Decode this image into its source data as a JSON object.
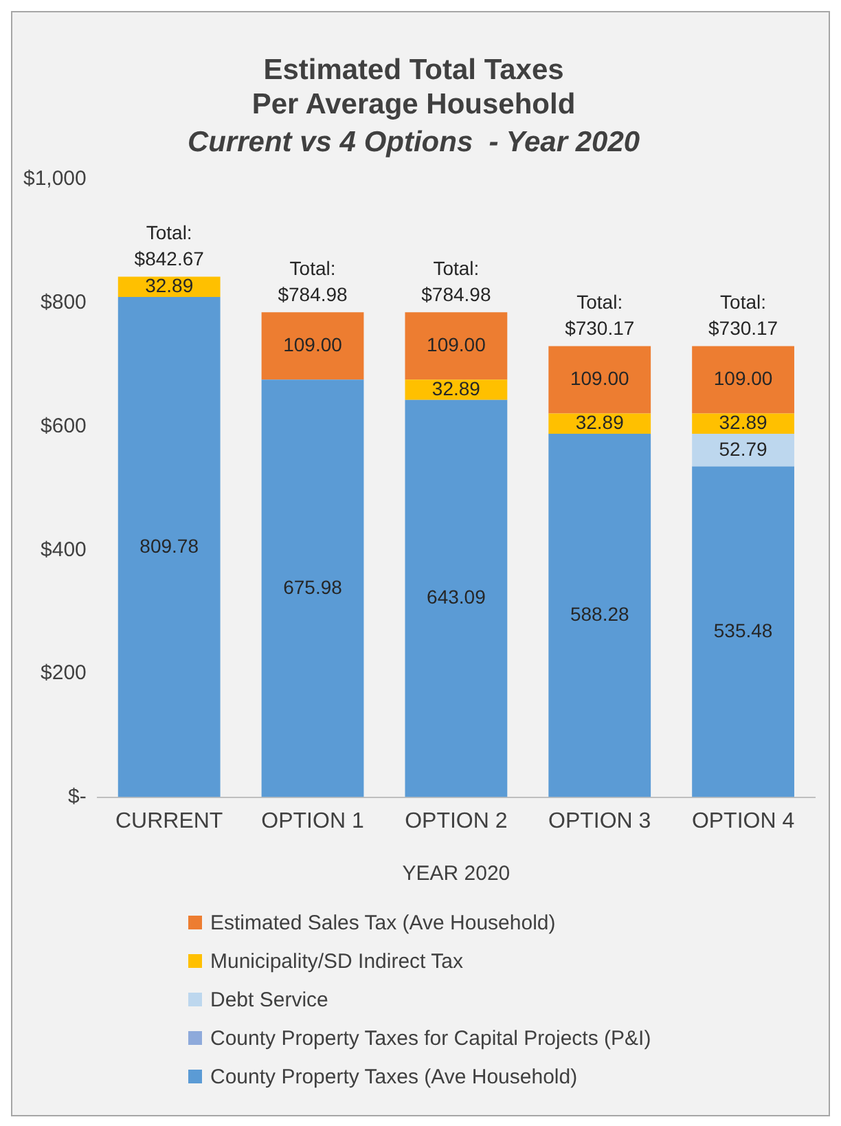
{
  "chart_data": {
    "type": "bar",
    "title": "Estimated Total Taxes\nPer Average Household",
    "subtitle": "Current vs 4 Options  - Year 2020",
    "xlabel": "YEAR 2020",
    "categories": [
      "CURRENT",
      "OPTION 1",
      "OPTION 2",
      "OPTION 3",
      "OPTION 4"
    ],
    "stacked": true,
    "ylim": [
      0,
      1000
    ],
    "yticks": [
      {
        "value": 0,
        "label": "$-"
      },
      {
        "value": 200,
        "label": "$200"
      },
      {
        "value": 400,
        "label": "$400"
      },
      {
        "value": 600,
        "label": "$600"
      },
      {
        "value": 800,
        "label": "$800"
      },
      {
        "value": 1000,
        "label": "$1,000"
      }
    ],
    "grid": false,
    "legend": "bottom",
    "totals": [
      "Total:\n$842.67",
      "Total:\n$784.98",
      "Total:\n$784.98",
      "Total:\n$730.17",
      "Total:\n$730.17"
    ],
    "series": [
      {
        "name": "County Property Taxes (Ave Household)",
        "color": "#5b9bd5",
        "values": [
          809.78,
          675.98,
          643.09,
          588.28,
          535.48
        ],
        "value_labels": [
          "809.78",
          "675.98",
          "643.09",
          "588.28",
          "535.48"
        ]
      },
      {
        "name": "County Property Taxes for Capital Projects (P&I)",
        "color": "#8eaadb",
        "values": [
          null,
          null,
          null,
          null,
          null
        ]
      },
      {
        "name": "Debt Service",
        "color": "#bdd7ee",
        "values": [
          null,
          null,
          null,
          null,
          52.79
        ],
        "value_labels": [
          null,
          null,
          null,
          null,
          "52.79"
        ]
      },
      {
        "name": "Municipality/SD Indirect Tax",
        "color": "#ffc000",
        "values": [
          32.89,
          null,
          32.89,
          32.89,
          32.89
        ],
        "value_labels": [
          "32.89",
          null,
          "32.89",
          "32.89",
          "32.89"
        ]
      },
      {
        "name": "Estimated Sales Tax (Ave Household)",
        "color": "#ed7d31",
        "values": [
          null,
          109.0,
          109.0,
          109.0,
          109.0
        ],
        "value_labels": [
          null,
          "109.00",
          "109.00",
          "109.00",
          "109.00"
        ]
      }
    ]
  }
}
